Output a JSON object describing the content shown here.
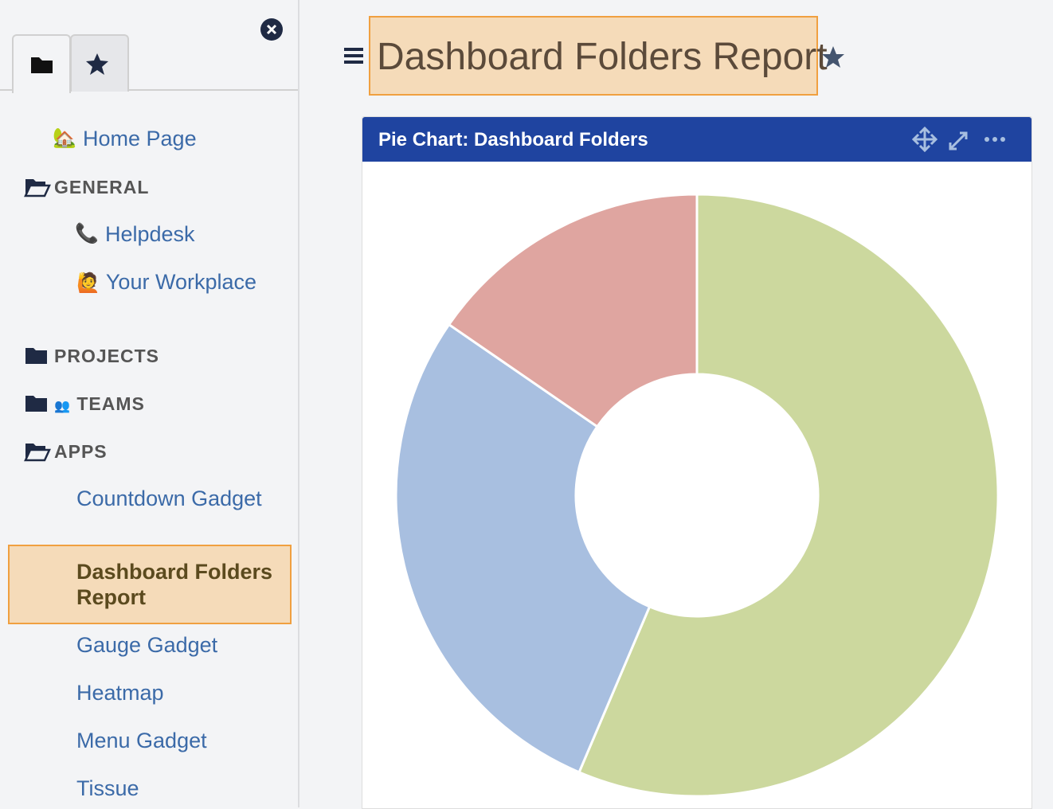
{
  "sidebar": {
    "items": [
      {
        "icon": "🏡",
        "label": "Home Page"
      },
      {
        "label": "GENERAL"
      },
      {
        "icon": "📞",
        "label": "Helpdesk"
      },
      {
        "icon": "🙋",
        "label": "Your Workplace"
      },
      {
        "label": "PROJECTS"
      },
      {
        "icon": "👥",
        "label": "TEAMS"
      },
      {
        "label": "APPS"
      },
      {
        "label": "Countdown Gadget"
      },
      {
        "label": "Dashboard Folders Report"
      },
      {
        "label": "Gauge Gadget"
      },
      {
        "label": "Heatmap"
      },
      {
        "label": "Menu Gadget"
      },
      {
        "label": "Tissue"
      }
    ]
  },
  "header": {
    "title": "Dashboard Folders Report"
  },
  "panel": {
    "title": "Pie Chart: Dashboard Folders"
  },
  "chart_data": {
    "type": "pie",
    "donut": true,
    "values": [
      56.4,
      28.2,
      15.4
    ],
    "colors": [
      "#ccd89e",
      "#a8bfe0",
      "#dfa5a0"
    ]
  }
}
